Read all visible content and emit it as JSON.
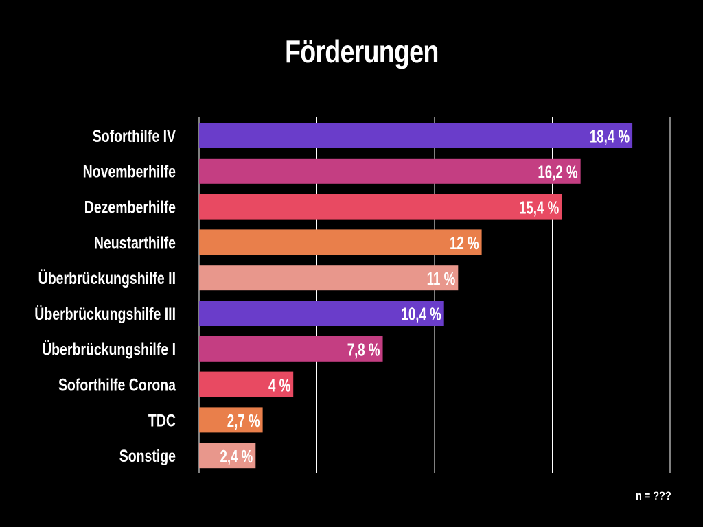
{
  "chart_data": {
    "type": "bar",
    "orientation": "horizontal",
    "title": "Förderungen",
    "categories": [
      "Soforthilfe IV",
      "Novemberhilfe",
      "Dezemberhilfe",
      "Neustarthilfe",
      "Überbrückungshilfe II",
      "Überbrückungshilfe III",
      "Überbrückungshilfe I",
      "Soforthilfe Corona",
      "TDC",
      "Sonstige"
    ],
    "values": [
      18.4,
      16.2,
      15.4,
      12,
      11,
      10.4,
      7.8,
      4,
      2.7,
      2.4
    ],
    "value_labels": [
      "18,4 %",
      "16,2 %",
      "15,4 %",
      "12 %",
      "11 %",
      "10,4 %",
      "7,8 %",
      "4 %",
      "2,7 %",
      "2,4 %"
    ],
    "colors": [
      "#6a3dca",
      "#c43e82",
      "#e84a62",
      "#e97f4b",
      "#e8978c",
      "#6a3dca",
      "#c43e82",
      "#e84a62",
      "#e97f4b",
      "#e8978c"
    ],
    "xlim": [
      0,
      20
    ],
    "grid": true,
    "xlabel": "",
    "ylabel": "",
    "legend": "none"
  },
  "footnote": "n = ???"
}
